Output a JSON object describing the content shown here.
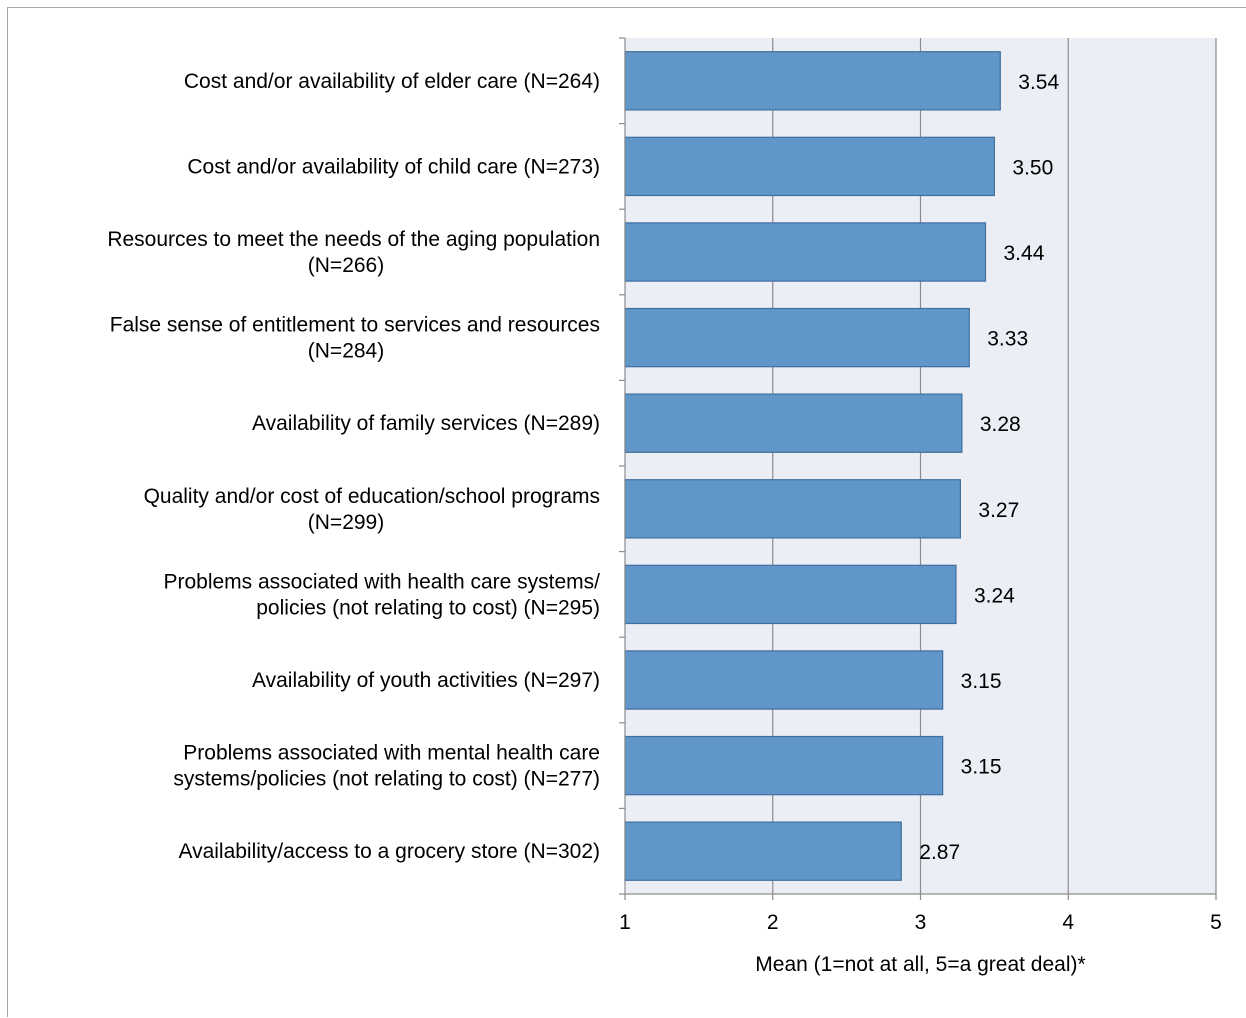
{
  "chart_data": {
    "type": "bar",
    "orientation": "horizontal",
    "title": "",
    "xlabel": "Mean (1=not at all, 5=a great deal)*",
    "ylabel": "",
    "xlim": [
      1,
      5
    ],
    "x_ticks": [
      "1",
      "2",
      "3",
      "4",
      "5"
    ],
    "grid": "vertical",
    "legend": "none",
    "bar_color": "#6096c8",
    "bar_border_color": "#3f6f9e",
    "plot_background": "#eceef6",
    "categories": [
      [
        "Cost and/or availability of elder care (N=264)"
      ],
      [
        "Cost and/or availability of child care (N=273)"
      ],
      [
        "Resources to meet the needs of the aging population",
        "(N=266)"
      ],
      [
        "False sense of entitlement to services and resources",
        "(N=284)"
      ],
      [
        "Availability of family services (N=289)"
      ],
      [
        "Quality and/or cost of education/school programs",
        "(N=299)"
      ],
      [
        "Problems associated with health care systems/",
        "policies (not relating to cost) (N=295)"
      ],
      [
        "Availability of youth activities (N=297)"
      ],
      [
        "Problems associated with mental health care",
        "systems/policies (not relating to cost) (N=277)"
      ],
      [
        "Availability/access to a grocery store (N=302)"
      ]
    ],
    "values": [
      3.54,
      3.5,
      3.44,
      3.33,
      3.28,
      3.27,
      3.24,
      3.15,
      3.15,
      2.87
    ],
    "value_labels": [
      "3.54",
      "3.50",
      "3.44",
      "3.33",
      "3.28",
      "3.27",
      "3.24",
      "3.15",
      "3.15",
      "2.87"
    ]
  }
}
